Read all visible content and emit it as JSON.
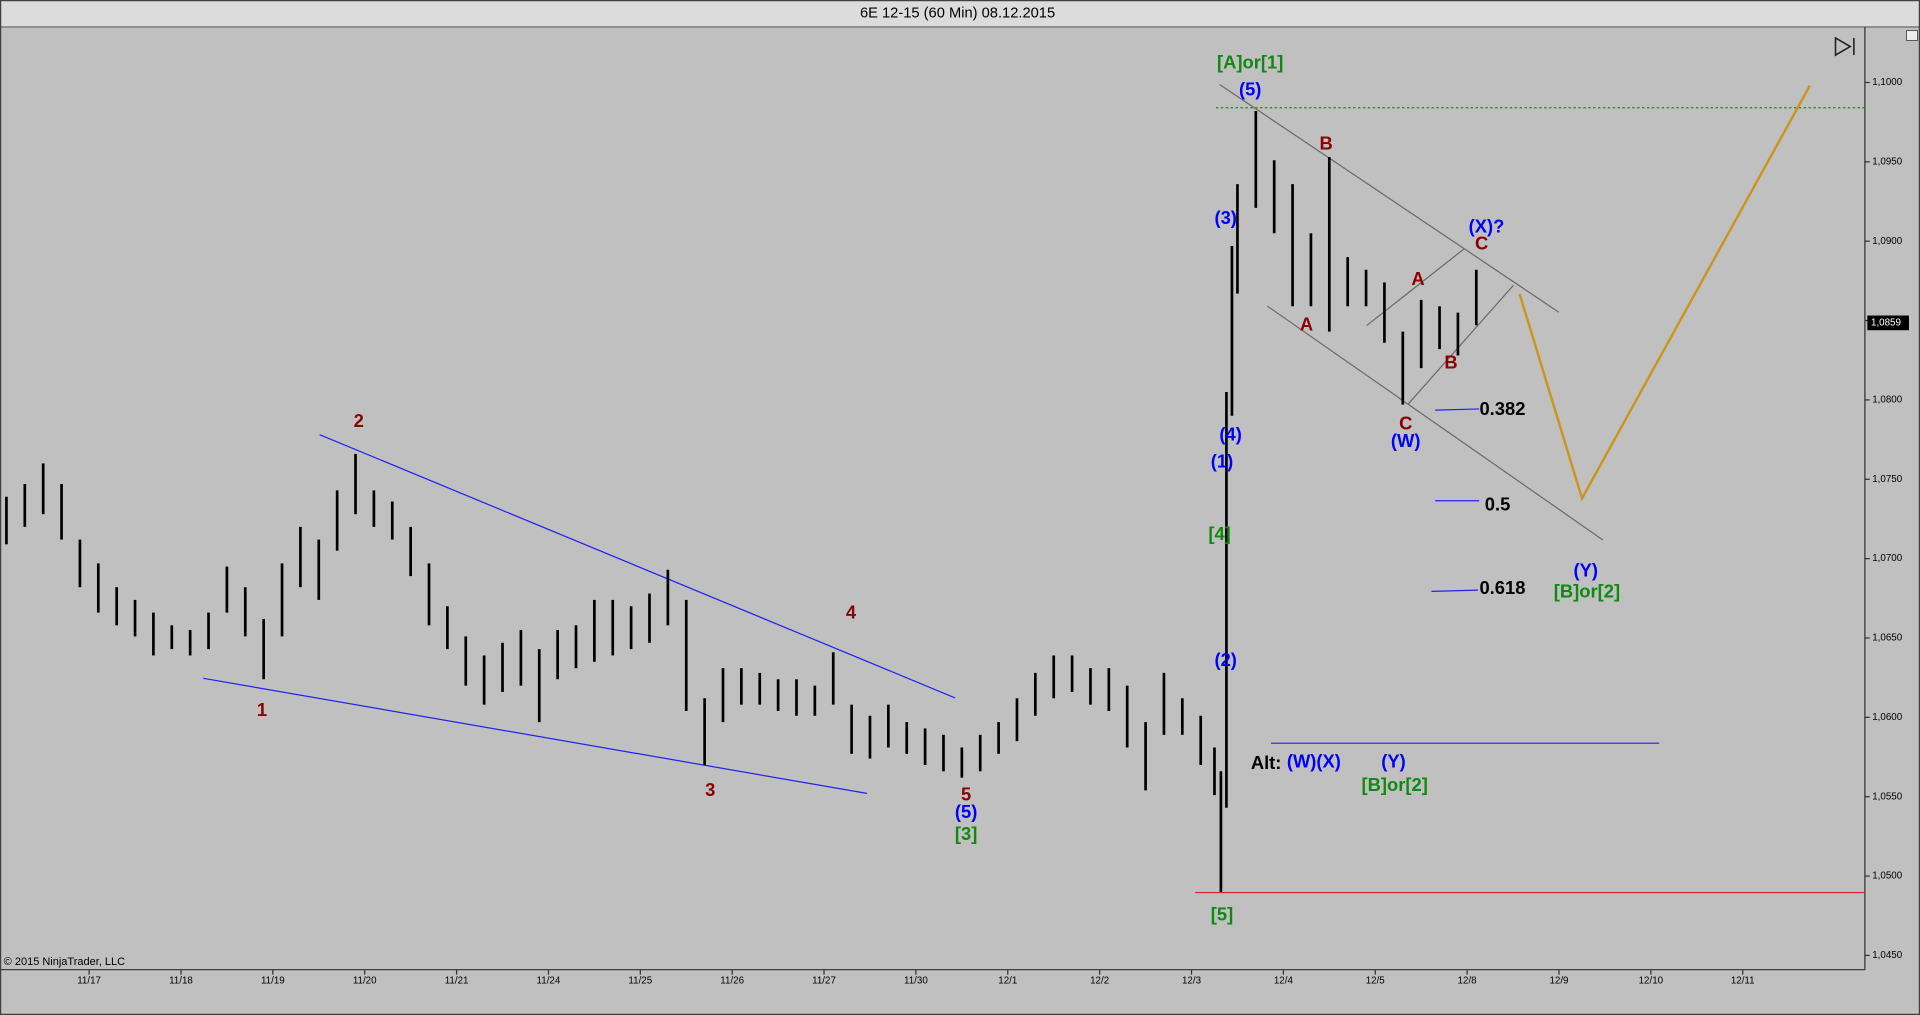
{
  "chart_data": {
    "type": "ohlc",
    "title": "6E 12-15 (60 Min)  08.12.2015",
    "copyright": "© 2015 NinjaTrader, LLC",
    "last_price_label": "1,0859",
    "bar_color": "#000000",
    "xlim": [
      -0.97,
      19.33
    ],
    "ylim": [
      1.0441,
      1.1035
    ],
    "xticks": [
      {
        "value": 0,
        "label": "11/17"
      },
      {
        "value": 1,
        "label": "11/18"
      },
      {
        "value": 2,
        "label": "11/19"
      },
      {
        "value": 3,
        "label": "11/20"
      },
      {
        "value": 4,
        "label": "11/21"
      },
      {
        "value": 5,
        "label": "11/24"
      },
      {
        "value": 6,
        "label": "11/25"
      },
      {
        "value": 7,
        "label": "11/26"
      },
      {
        "value": 8,
        "label": "11/27"
      },
      {
        "value": 9,
        "label": "11/30"
      },
      {
        "value": 10,
        "label": "12/1"
      },
      {
        "value": 11,
        "label": "12/2"
      },
      {
        "value": 12,
        "label": "12/3"
      },
      {
        "value": 13,
        "label": "12/4"
      },
      {
        "value": 14,
        "label": "12/5"
      },
      {
        "value": 15,
        "label": "12/8"
      },
      {
        "value": 16,
        "label": "12/9"
      },
      {
        "value": 17,
        "label": "12/10"
      },
      {
        "value": 18,
        "label": "12/11"
      }
    ],
    "yticks": [
      {
        "value": 1.045,
        "label": "1,0450"
      },
      {
        "value": 1.05,
        "label": "1,0500"
      },
      {
        "value": 1.055,
        "label": "1,0550"
      },
      {
        "value": 1.06,
        "label": "1,0600"
      },
      {
        "value": 1.065,
        "label": "1,0650"
      },
      {
        "value": 1.07,
        "label": "1,0700"
      },
      {
        "value": 1.075,
        "label": "1,0750"
      },
      {
        "value": 1.08,
        "label": "1,0800"
      },
      {
        "value": 1.085,
        "label": "1,0850"
      },
      {
        "value": 1.09,
        "label": "1,0900"
      },
      {
        "value": 1.095,
        "label": "1,0950"
      },
      {
        "value": 1.1,
        "label": "1,1000"
      }
    ],
    "x": [
      -0.9,
      -0.7,
      -0.5,
      -0.3,
      -0.1,
      0.1,
      0.3,
      0.5,
      0.7,
      0.9,
      1.1,
      1.3,
      1.5,
      1.7,
      1.9,
      2.1,
      2.3,
      2.5,
      2.7,
      2.9,
      3.1,
      3.3,
      3.5,
      3.7,
      3.9,
      4.1,
      4.3,
      4.5,
      4.7,
      4.9,
      5.1,
      5.3,
      5.5,
      5.7,
      5.9,
      6.1,
      6.3,
      6.5,
      6.7,
      6.9,
      7.1,
      7.3,
      7.5,
      7.7,
      7.9,
      8.1,
      8.3,
      8.5,
      8.7,
      8.9,
      9.1,
      9.3,
      9.5,
      9.7,
      9.9,
      10.1,
      10.3,
      10.5,
      10.7,
      10.9,
      11.1,
      11.3,
      11.5,
      11.7,
      11.9,
      12.1,
      12.25,
      12.32,
      12.38,
      12.44,
      12.5,
      12.7,
      12.9,
      13.1,
      13.3,
      13.5,
      13.7,
      13.9,
      14.1,
      14.3,
      14.5,
      14.7,
      14.9,
      15.1
    ],
    "high": [
      1.0739,
      1.0747,
      1.076,
      1.0747,
      1.0712,
      1.0697,
      1.0682,
      1.0674,
      1.0666,
      1.0658,
      1.0655,
      1.0666,
      1.0695,
      1.0682,
      1.0662,
      1.0697,
      1.072,
      1.0712,
      1.0743,
      1.0766,
      1.0743,
      1.0736,
      1.072,
      1.0697,
      1.067,
      1.0651,
      1.0639,
      1.0647,
      1.0655,
      1.0643,
      1.0655,
      1.0658,
      1.0674,
      1.0674,
      1.067,
      1.0678,
      1.0693,
      1.0674,
      1.0612,
      1.0631,
      1.0631,
      1.0628,
      1.0624,
      1.0624,
      1.062,
      1.0641,
      1.0608,
      1.0601,
      1.0608,
      1.0597,
      1.0593,
      1.0589,
      1.0581,
      1.0589,
      1.0597,
      1.0612,
      1.0628,
      1.0639,
      1.0639,
      1.0631,
      1.0631,
      1.062,
      1.0597,
      1.0628,
      1.0612,
      1.0601,
      1.0581,
      1.0566,
      1.0805,
      1.0897,
      1.0936,
      1.0982,
      1.0951,
      1.0936,
      1.0905,
      1.0953,
      1.089,
      1.0882,
      1.0874,
      1.0843,
      1.0863,
      1.0859,
      1.0855,
      1.0882
    ],
    "low": [
      1.0709,
      1.072,
      1.0728,
      1.0712,
      1.0682,
      1.0666,
      1.0658,
      1.0651,
      1.0639,
      1.0643,
      1.0639,
      1.0643,
      1.0666,
      1.0651,
      1.0624,
      1.0651,
      1.0682,
      1.0674,
      1.0705,
      1.0728,
      1.072,
      1.0712,
      1.0689,
      1.0658,
      1.0643,
      1.062,
      1.0608,
      1.0616,
      1.062,
      1.0597,
      1.0624,
      1.0631,
      1.0635,
      1.0639,
      1.0643,
      1.0647,
      1.0658,
      1.0604,
      1.057,
      1.0597,
      1.0608,
      1.0608,
      1.0604,
      1.0601,
      1.0601,
      1.0608,
      1.0577,
      1.0574,
      1.0581,
      1.0577,
      1.057,
      1.0566,
      1.0562,
      1.0566,
      1.0577,
      1.0585,
      1.0601,
      1.0612,
      1.0616,
      1.0608,
      1.0604,
      1.0581,
      1.0554,
      1.0589,
      1.0589,
      1.057,
      1.0551,
      1.049,
      1.0543,
      1.079,
      1.0867,
      1.0921,
      1.0905,
      1.0859,
      1.0859,
      1.0843,
      1.0859,
      1.0859,
      1.0836,
      1.0797,
      1.082,
      1.0832,
      1.0828,
      1.0847
    ],
    "annotations": [
      {
        "text": "1",
        "color": "#8b0000"
      },
      {
        "text": "2",
        "color": "#8b0000"
      },
      {
        "text": "3",
        "color": "#8b0000"
      },
      {
        "text": "4",
        "color": "#8b0000"
      },
      {
        "text": "5",
        "color": "#8b0000"
      },
      {
        "text": "(5)",
        "color": "#0000ff"
      },
      {
        "text": "[3]",
        "color": "#118811"
      },
      {
        "text": "[5]",
        "color": "#118811"
      },
      {
        "text": "[4]",
        "color": "#118811"
      },
      {
        "text": "(2)",
        "color": "#0000ff"
      },
      {
        "text": "(1)",
        "color": "#0000ff"
      },
      {
        "text": "(4)",
        "color": "#0000ff"
      },
      {
        "text": "(3)",
        "color": "#0000ff"
      },
      {
        "text": "(5)",
        "color": "#0000ff"
      },
      {
        "text": "[A]or[1]",
        "color": "#118811"
      },
      {
        "text": "B",
        "color": "#8b0000"
      },
      {
        "text": "A",
        "color": "#8b0000"
      },
      {
        "text": "(X)?",
        "color": "#0000ff"
      },
      {
        "text": "C",
        "color": "#8b0000"
      },
      {
        "text": "A",
        "color": "#8b0000"
      },
      {
        "text": "B",
        "color": "#8b0000"
      },
      {
        "text": "C",
        "color": "#8b0000"
      },
      {
        "text": "(W)",
        "color": "#0000ff"
      },
      {
        "text": "0.382",
        "color": "#000000"
      },
      {
        "text": "0.5",
        "color": "#000000"
      },
      {
        "text": "0.618",
        "color": "#000000"
      },
      {
        "text": "(Y)",
        "color": "#0000ff"
      },
      {
        "text": "[B]or[2]",
        "color": "#118811"
      },
      {
        "text": "Alt:",
        "color": "#000000"
      },
      {
        "text": "(W)(X)",
        "color": "#0000ff"
      },
      {
        "text": "(Y)",
        "color": "#0000ff"
      },
      {
        "text": "[B]or[2]",
        "color": "#118811"
      }
    ]
  }
}
